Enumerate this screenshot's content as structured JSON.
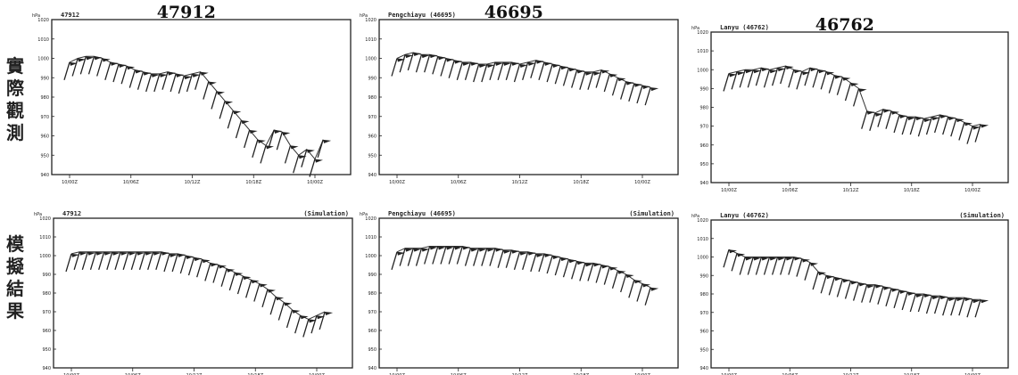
{
  "row_labels": [
    "實際觀測",
    "模擬結果"
  ],
  "chart_data": [
    {
      "type": "line",
      "chart_title": "47912",
      "corner_label": "47912",
      "sim_tag": "",
      "y_unit": "hPa",
      "y_ticks": [
        1020,
        1010,
        1000,
        990,
        980,
        970,
        960,
        950,
        940
      ],
      "ylim": [
        940,
        1020
      ],
      "x_ticks": [
        "10/00Z",
        "10/06Z",
        "10/12Z",
        "10/18Z",
        "10/00Z"
      ],
      "x_range": [
        0,
        24
      ],
      "series": [
        {
          "x": [
            0,
            0.8,
            1.6,
            2.4,
            3.2,
            4,
            4.8,
            5.6,
            6.4,
            7.2,
            8,
            8.8,
            9.6,
            10.4,
            11.2,
            12,
            12.8,
            13.6,
            14.4,
            15.2,
            16,
            16.8,
            17.6,
            18.4,
            19.2,
            20,
            20.8,
            21.6,
            22.4,
            23.2,
            24,
            24.8
          ],
          "y": [
            998,
            1000,
            1001,
            1001,
            1000,
            998,
            997,
            996,
            994,
            993,
            992,
            992,
            993,
            992,
            991,
            992,
            993,
            988,
            983,
            978,
            973,
            968,
            963,
            958,
            955,
            963,
            962,
            955,
            950,
            953,
            948,
            958
          ]
        }
      ]
    },
    {
      "type": "line",
      "chart_title": "46695",
      "corner_label": "Pengchiayu (46695)",
      "sim_tag": "",
      "y_unit": "hPa",
      "y_ticks": [
        1020,
        1010,
        1000,
        990,
        980,
        970,
        960,
        950,
        940
      ],
      "ylim": [
        940,
        1020
      ],
      "x_ticks": [
        "10/00Z",
        "10/06Z",
        "10/12Z",
        "10/18Z",
        "10/00Z"
      ],
      "x_range": [
        0,
        24
      ],
      "series": [
        {
          "x": [
            0,
            0.8,
            1.6,
            2.4,
            3.2,
            4,
            4.8,
            5.6,
            6.4,
            7.2,
            8,
            8.8,
            9.6,
            10.4,
            11.2,
            12,
            12.8,
            13.6,
            14.4,
            15.2,
            16,
            16.8,
            17.6,
            18.4,
            19.2,
            20,
            20.8,
            21.6,
            22.4,
            23.2,
            24,
            24.8
          ],
          "y": [
            1000,
            1002,
            1003,
            1002,
            1002,
            1001,
            1000,
            999,
            998,
            998,
            997,
            997,
            998,
            998,
            998,
            997,
            998,
            999,
            998,
            997,
            996,
            995,
            994,
            993,
            993,
            994,
            992,
            990,
            988,
            987,
            986,
            985
          ]
        }
      ]
    },
    {
      "type": "line",
      "chart_title": "46762",
      "corner_label": "Lanyu (46762)",
      "sim_tag": "",
      "y_unit": "hPa",
      "y_ticks": [
        1020,
        1010,
        1000,
        990,
        980,
        970,
        960,
        950,
        940
      ],
      "ylim": [
        940,
        1020
      ],
      "x_ticks": [
        "10/00Z",
        "10/06Z",
        "10/12Z",
        "10/18Z",
        "10/00Z"
      ],
      "x_range": [
        0,
        24
      ],
      "series": [
        {
          "x": [
            0,
            0.8,
            1.6,
            2.4,
            3.2,
            4,
            4.8,
            5.6,
            6.4,
            7.2,
            8,
            8.8,
            9.6,
            10.4,
            11.2,
            12,
            12.8,
            13.6,
            14.4,
            15.2,
            16,
            16.8,
            17.6,
            18.4,
            19.2,
            20,
            20.8,
            21.6,
            22.4,
            23.2,
            24,
            24.8
          ],
          "y": [
            998,
            999,
            1000,
            1000,
            1001,
            1000,
            1001,
            1002,
            1000,
            999,
            1001,
            1000,
            999,
            997,
            996,
            993,
            990,
            978,
            977,
            979,
            978,
            976,
            975,
            975,
            974,
            975,
            976,
            975,
            974,
            972,
            970,
            971
          ]
        }
      ]
    },
    {
      "type": "line",
      "chart_title": "",
      "corner_label": "47912",
      "sim_tag": "(Simulation)",
      "y_unit": "hPa",
      "y_ticks": [
        1020,
        1010,
        1000,
        990,
        980,
        970,
        960,
        950,
        940
      ],
      "ylim": [
        940,
        1020
      ],
      "x_ticks": [
        "10/00Z",
        "10/06Z",
        "10/12Z",
        "10/18Z",
        "10/00Z"
      ],
      "x_range": [
        0,
        24
      ],
      "series": [
        {
          "x": [
            0,
            0.8,
            1.6,
            2.4,
            3.2,
            4,
            4.8,
            5.6,
            6.4,
            7.2,
            8,
            8.8,
            9.6,
            10.4,
            11.2,
            12,
            12.8,
            13.6,
            14.4,
            15.2,
            16,
            16.8,
            17.6,
            18.4,
            19.2,
            20,
            20.8,
            21.6,
            22.4,
            23.2,
            24,
            24.8
          ],
          "y": [
            1001,
            1002,
            1002,
            1002,
            1002,
            1002,
            1002,
            1002,
            1002,
            1002,
            1002,
            1002,
            1001,
            1001,
            1000,
            999,
            998,
            996,
            995,
            993,
            991,
            989,
            987,
            985,
            982,
            978,
            975,
            971,
            968,
            966,
            968,
            970
          ]
        }
      ]
    },
    {
      "type": "line",
      "chart_title": "",
      "corner_label": "Pengchiayu (46695)",
      "sim_tag": "(Simulation)",
      "y_unit": "hPa",
      "y_ticks": [
        1020,
        1010,
        1000,
        990,
        980,
        970,
        960,
        950,
        940
      ],
      "ylim": [
        940,
        1020
      ],
      "x_ticks": [
        "10/00Z",
        "10/06Z",
        "10/12Z",
        "10/18Z",
        "10/00Z"
      ],
      "x_range": [
        0,
        24
      ],
      "series": [
        {
          "x": [
            0,
            0.8,
            1.6,
            2.4,
            3.2,
            4,
            4.8,
            5.6,
            6.4,
            7.2,
            8,
            8.8,
            9.6,
            10.4,
            11.2,
            12,
            12.8,
            13.6,
            14.4,
            15.2,
            16,
            16.8,
            17.6,
            18.4,
            19.2,
            20,
            20.8,
            21.6,
            22.4,
            23.2,
            24,
            24.8
          ],
          "y": [
            1002,
            1004,
            1004,
            1004,
            1005,
            1005,
            1005,
            1005,
            1005,
            1004,
            1004,
            1004,
            1004,
            1003,
            1003,
            1002,
            1002,
            1001,
            1001,
            1000,
            999,
            998,
            997,
            996,
            996,
            995,
            994,
            992,
            990,
            987,
            985,
            983
          ]
        }
      ]
    },
    {
      "type": "line",
      "chart_title": "",
      "corner_label": "Lanyu (46762)",
      "sim_tag": "(Simulation)",
      "y_unit": "hPa",
      "y_ticks": [
        1020,
        1010,
        1000,
        990,
        980,
        970,
        960,
        950,
        940
      ],
      "ylim": [
        940,
        1020
      ],
      "x_ticks": [
        "10/00Z",
        "10/06Z",
        "10/12Z",
        "10/18Z",
        "10/00Z"
      ],
      "x_range": [
        0,
        24
      ],
      "series": [
        {
          "x": [
            0,
            0.8,
            1.6,
            2.4,
            3.2,
            4,
            4.8,
            5.6,
            6.4,
            7.2,
            8,
            8.8,
            9.6,
            10.4,
            11.2,
            12,
            12.8,
            13.6,
            14.4,
            15.2,
            16,
            16.8,
            17.6,
            18.4,
            19.2,
            20,
            20.8,
            21.6,
            22.4,
            23.2,
            24,
            24.8
          ],
          "y": [
            1004,
            1002,
            1000,
            1000,
            1000,
            1000,
            1000,
            1000,
            1000,
            999,
            997,
            992,
            990,
            989,
            988,
            987,
            986,
            985,
            985,
            984,
            983,
            982,
            981,
            980,
            980,
            979,
            979,
            978,
            978,
            978,
            977,
            977
          ]
        }
      ]
    }
  ]
}
